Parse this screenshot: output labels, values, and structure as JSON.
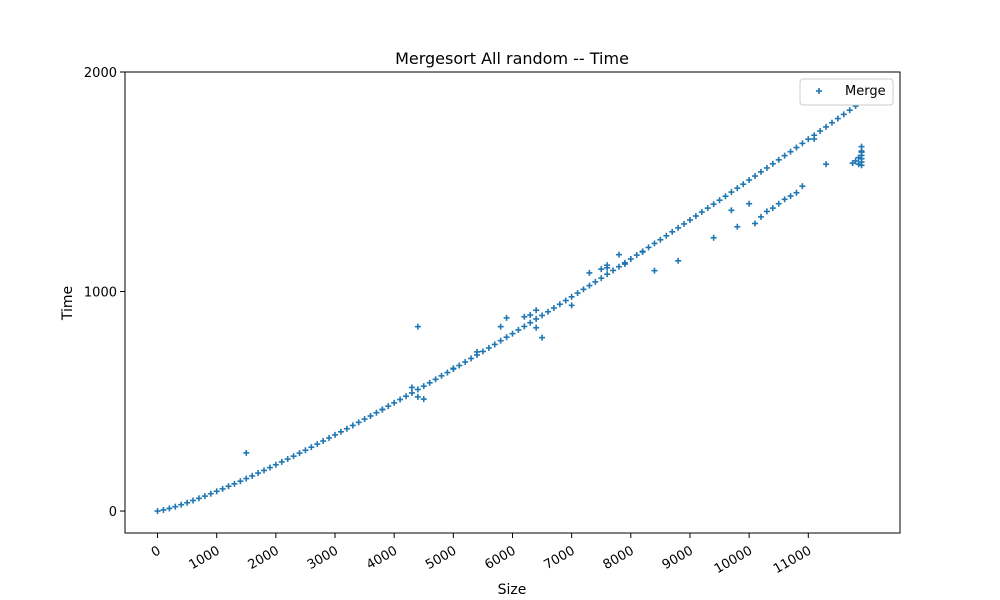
{
  "chart_data": {
    "type": "scatter",
    "title": "Mergesort All random -- Time",
    "xlabel": "Size",
    "ylabel": "Time",
    "xlim": [
      -550,
      12550
    ],
    "ylim": [
      -100,
      2000
    ],
    "xticks": [
      0,
      1000,
      2000,
      3000,
      4000,
      5000,
      6000,
      7000,
      8000,
      9000,
      10000,
      11000
    ],
    "xtick_labels": [
      "0",
      "1000",
      "2000",
      "3000",
      "4000",
      "5000",
      "6000",
      "7000",
      "8000",
      "9000",
      "10000",
      "11000"
    ],
    "yticks": [
      0,
      1000,
      2000
    ],
    "ytick_labels": [
      "0",
      "1000",
      "2000"
    ],
    "grid": false,
    "legend_position": "top-right",
    "marker": "plus",
    "series": [
      {
        "name": "Merge",
        "color": "#1f77b4",
        "x": [
          0,
          100,
          200,
          300,
          400,
          500,
          600,
          700,
          800,
          900,
          1000,
          1100,
          1200,
          1300,
          1400,
          1500,
          1600,
          1700,
          1800,
          1900,
          2000,
          2100,
          2200,
          2300,
          2400,
          2500,
          2600,
          2700,
          2800,
          2900,
          3000,
          3100,
          3200,
          3300,
          3400,
          3500,
          3600,
          3700,
          3800,
          3900,
          4000,
          4100,
          4200,
          4300,
          4400,
          4500,
          4600,
          4700,
          4800,
          4900,
          5000,
          5100,
          5200,
          5300,
          5400,
          5500,
          5600,
          5700,
          5800,
          5900,
          6000,
          6100,
          6200,
          6300,
          6400,
          6500,
          6600,
          6700,
          6800,
          6900,
          7000,
          7100,
          7200,
          7300,
          7400,
          7500,
          7600,
          7700,
          7800,
          7900,
          8000,
          8100,
          8200,
          8300,
          8400,
          8500,
          8600,
          8700,
          8800,
          8900,
          9000,
          9100,
          9200,
          9300,
          9400,
          9500,
          9600,
          9700,
          9800,
          9900,
          10000,
          10100,
          10200,
          10300,
          10400,
          10500,
          10600,
          10700,
          10800,
          10900,
          11000,
          11100,
          11200,
          11300,
          11400,
          11500,
          11600,
          11700,
          11800,
          11900,
          11900,
          11900,
          11900,
          11900,
          11850,
          11850,
          11800,
          11750,
          1500,
          3800,
          4300,
          4400,
          4400,
          4500,
          5000,
          5400,
          5800,
          5900,
          6200,
          6300,
          6400,
          6400,
          6500,
          7000,
          7300,
          7500,
          7600,
          7600,
          7800,
          7900,
          8200,
          8400,
          8800,
          9400,
          9700,
          9800,
          10000,
          10100,
          10200,
          10300,
          10400,
          10500,
          10600,
          10700,
          10800,
          10900,
          11100,
          11300,
          11900,
          11900
        ],
        "y": [
          0,
          5,
          12,
          20,
          29,
          38,
          48,
          58,
          68,
          79,
          90,
          101,
          113,
          124,
          136,
          148,
          160,
          173,
          185,
          198,
          211,
          224,
          237,
          250,
          264,
          277,
          291,
          305,
          319,
          333,
          347,
          361,
          375,
          390,
          404,
          419,
          433,
          448,
          463,
          478,
          493,
          508,
          523,
          538,
          554,
          569,
          584,
          600,
          616,
          631,
          647,
          663,
          679,
          695,
          711,
          727,
          743,
          759,
          776,
          792,
          808,
          825,
          841,
          858,
          875,
          891,
          908,
          925,
          942,
          959,
          976,
          993,
          1010,
          1027,
          1044,
          1061,
          1079,
          1096,
          1113,
          1131,
          1148,
          1166,
          1183,
          1201,
          1219,
          1236,
          1254,
          1272,
          1290,
          1308,
          1326,
          1344,
          1362,
          1380,
          1398,
          1416,
          1434,
          1453,
          1471,
          1489,
          1508,
          1526,
          1545,
          1563,
          1582,
          1600,
          1619,
          1637,
          1656,
          1675,
          1694,
          1712,
          1731,
          1750,
          1769,
          1788,
          1807,
          1826,
          1845,
          1575,
          1590,
          1605,
          1620,
          1635,
          1580,
          1610,
          1595,
          1585,
          265,
          462,
          563,
          520,
          840,
          510,
          650,
          725,
          840,
          880,
          885,
          893,
          915,
          835,
          790,
          937,
          1085,
          1102,
          1108,
          1120,
          1168,
          1125,
          1180,
          1095,
          1140,
          1245,
          1370,
          1295,
          1400,
          1310,
          1340,
          1365,
          1380,
          1400,
          1420,
          1435,
          1450,
          1480,
          1695,
          1580,
          1660,
          1640
        ]
      }
    ]
  }
}
